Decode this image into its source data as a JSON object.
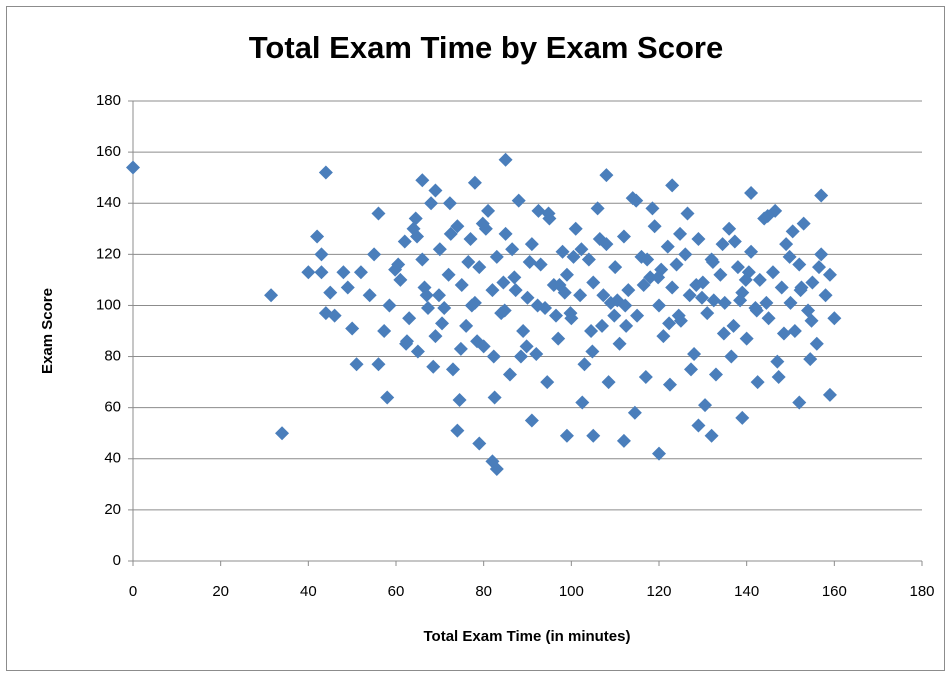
{
  "chart_data": {
    "type": "scatter",
    "title": "Total Exam Time by Exam Score",
    "x_label": "Total Exam Time (in minutes)",
    "y_label": "Exam Score",
    "color": "#4a7ebb",
    "grid": true,
    "xlim": [
      0,
      180
    ],
    "xticks": [
      0,
      20,
      40,
      60,
      80,
      100,
      120,
      140,
      160,
      180
    ],
    "ylim": [
      0,
      180
    ],
    "yticks": [
      0,
      20,
      40,
      60,
      80,
      100,
      120,
      140,
      160,
      180
    ],
    "x": [
      0,
      31.5,
      34,
      44,
      42,
      43,
      40,
      43,
      44,
      45,
      46,
      48,
      49,
      50,
      51,
      52,
      54,
      55,
      56,
      56,
      58,
      66,
      69,
      78,
      85,
      83,
      82,
      79,
      74,
      91,
      99,
      105,
      112,
      120,
      129,
      132,
      139,
      141,
      152,
      157,
      159,
      108,
      123,
      61,
      62,
      63,
      64,
      65,
      66,
      67,
      68,
      69,
      70,
      71,
      72,
      73,
      74,
      75,
      76,
      77,
      78,
      79,
      80,
      81,
      82,
      83,
      84,
      85,
      86,
      87,
      88,
      89,
      90,
      91,
      92,
      93,
      94,
      95,
      96,
      97,
      98,
      99,
      100,
      101,
      102,
      103,
      104,
      105,
      106,
      107,
      108,
      109,
      110,
      111,
      112,
      113,
      114,
      115,
      116,
      117,
      118,
      119,
      120,
      121,
      122,
      123,
      124,
      125,
      126,
      127,
      128,
      129,
      130,
      131,
      132,
      133,
      134,
      135,
      136,
      137,
      138,
      139,
      140,
      141,
      142,
      143,
      144,
      145,
      146,
      147,
      148,
      149,
      150,
      151,
      152,
      153,
      154,
      155,
      156,
      157,
      158,
      159,
      160,
      58.5,
      60.5,
      62.5,
      64.5,
      66.5,
      68.5,
      70.5,
      72.5,
      74.5,
      76.5,
      78.5,
      80.5,
      82.5,
      84.5,
      86.5,
      88.5,
      90.5,
      92.5,
      94.5,
      96.5,
      98.5,
      100.5,
      102.5,
      104.5,
      106.5,
      108.5,
      110.5,
      112.5,
      114.5,
      116.5,
      118.5,
      120.5,
      122.5,
      124.5,
      126.5,
      128.5,
      130.5,
      132.5,
      134.5,
      136.5,
      138.5,
      140.5,
      142.5,
      144.5,
      146.5,
      148.5,
      150.5,
      152.5,
      154.5,
      156.5,
      57.3,
      59.8,
      62.3,
      64.8,
      67.3,
      69.8,
      72.3,
      74.8,
      77.3,
      79.8,
      82.3,
      84.8,
      87.3,
      89.8,
      92.3,
      94.8,
      97.3,
      99.8,
      102.3,
      104.8,
      107.3,
      109.8,
      112.3,
      114.8,
      117.3,
      119.8,
      122.3,
      124.8,
      127.3,
      129.8,
      132.3,
      134.8,
      137.3,
      139.8,
      142.3,
      144.8,
      147.3,
      149.8,
      152.3,
      154.8
    ],
    "y": [
      154,
      104,
      50,
      152,
      127,
      120,
      113,
      113,
      97,
      105,
      96,
      113,
      107,
      91,
      77,
      113,
      104,
      120,
      136,
      77,
      64,
      149,
      145,
      148,
      157,
      36,
      39,
      46,
      51,
      55,
      49,
      49,
      47,
      42,
      53,
      49,
      56,
      144,
      62,
      143,
      65,
      151,
      147,
      110,
      125,
      95,
      130,
      82,
      118,
      104,
      140,
      88,
      122,
      99,
      112,
      75,
      131,
      108,
      92,
      126,
      101,
      115,
      84,
      137,
      106,
      119,
      97,
      128,
      73,
      111,
      141,
      90,
      103,
      124,
      81,
      116,
      99,
      134,
      108,
      87,
      121,
      112,
      95,
      130,
      104,
      77,
      118,
      109,
      138,
      92,
      124,
      101,
      115,
      85,
      127,
      106,
      142,
      96,
      119,
      72,
      111,
      131,
      100,
      88,
      123,
      107,
      116,
      94,
      120,
      104,
      81,
      126,
      109,
      97,
      118,
      73,
      112,
      101,
      130,
      92,
      115,
      105,
      87,
      121,
      99,
      110,
      134,
      95,
      113,
      78,
      107,
      124,
      101,
      90,
      116,
      132,
      98,
      109,
      85,
      120,
      104,
      112,
      95,
      100,
      116,
      86,
      134,
      107,
      76,
      93,
      128,
      63,
      117,
      86,
      130,
      64,
      109,
      122,
      80,
      117,
      137,
      70,
      96,
      105,
      119,
      62,
      90,
      126,
      70,
      102,
      92,
      58,
      108,
      138,
      114,
      69,
      96,
      136,
      108,
      61,
      102,
      124,
      80,
      102,
      113,
      70,
      101,
      137,
      89,
      129,
      107,
      79,
      115,
      90,
      114,
      85,
      127,
      99,
      104,
      140,
      83,
      100,
      132,
      80,
      98,
      106,
      84,
      100,
      136,
      108,
      97,
      122,
      82,
      104,
      96,
      100,
      141,
      118,
      111,
      93,
      128,
      75,
      103,
      117,
      89,
      125,
      110,
      98,
      135,
      72,
      119,
      106,
      94
    ]
  }
}
